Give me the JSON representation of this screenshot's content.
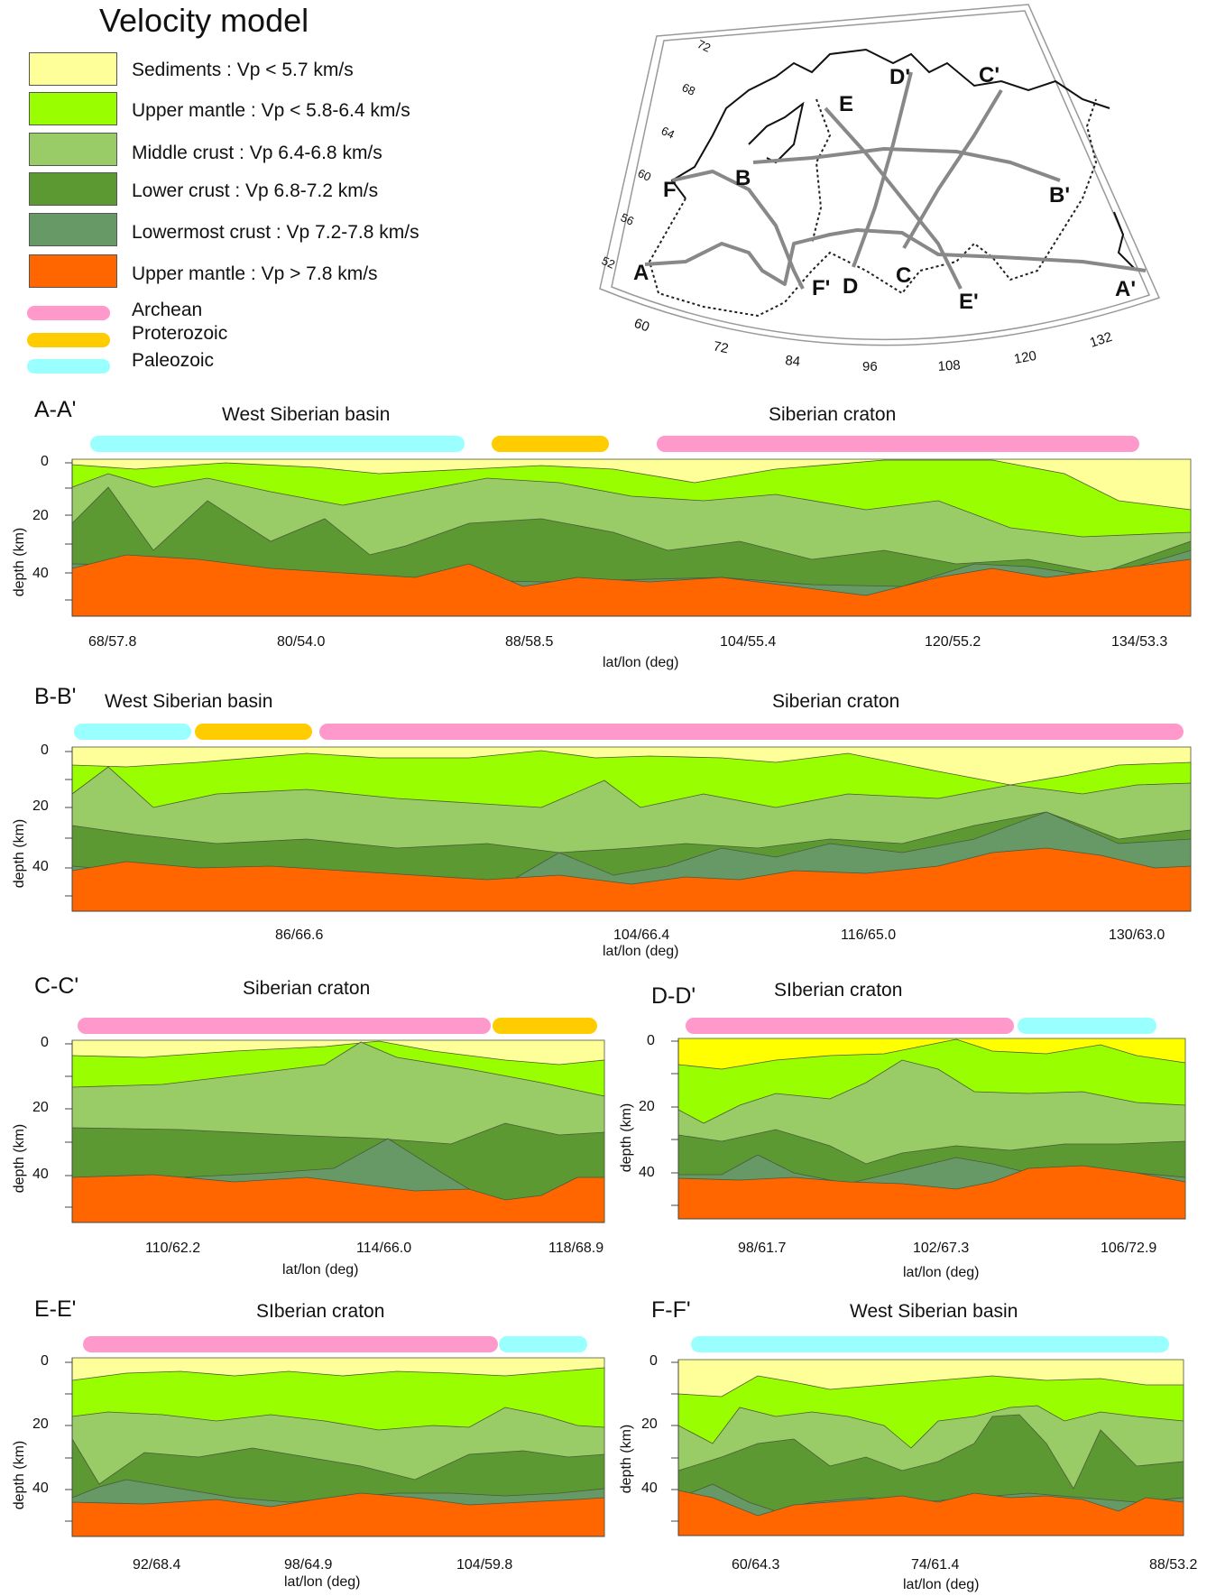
{
  "legend": {
    "title": "Velocity model",
    "layers": [
      {
        "label": "Sediments : Vp < 5.7 km/s",
        "color": "#ffff99"
      },
      {
        "label": "Upper mantle : Vp < 5.8-6.4 km/s",
        "color": "#99ff00"
      },
      {
        "label": "Middle crust : Vp 6.4-6.8 km/s",
        "color": "#99cc66"
      },
      {
        "label": "Lower crust : Vp 6.8-7.2 km/s",
        "color": "#5c9933"
      },
      {
        "label": "Lowermost crust : Vp 7.2-7.8 km/s",
        "color": "#669966"
      },
      {
        "label": "Upper mantle : Vp > 7.8 km/s",
        "color": "#ff6600"
      }
    ],
    "ages": [
      {
        "label": "Archean",
        "color": "#ff99cc"
      },
      {
        "label": "Proterozoic",
        "color": "#ffcc00"
      },
      {
        "label": "Paleozoic",
        "color": "#99ffff"
      }
    ]
  },
  "map": {
    "lat_labels": [
      "72",
      "68",
      "64",
      "60",
      "56",
      "52"
    ],
    "lon_labels": [
      "60",
      "72",
      "84",
      "96",
      "108",
      "120",
      "132"
    ],
    "profile_labels": [
      "A",
      "A'",
      "B",
      "B'",
      "C",
      "C'",
      "D",
      "D'",
      "E",
      "E'",
      "F",
      "F'"
    ]
  },
  "panels": [
    {
      "id": "aa",
      "title": "A-A'",
      "regions": [
        "West Siberian basin",
        "Siberian craton"
      ],
      "ages": [
        "Paleozoic",
        "Proterozoic",
        "Archean"
      ],
      "ticks": [
        "68/57.8",
        "80/54.0",
        "88/58.5",
        "104/55.4",
        "120/55.2",
        "134/53.3"
      ],
      "xlabel": "lat/lon (deg)",
      "ylabel": "depth (km)",
      "depth_ticks": [
        "0",
        "20",
        "40"
      ]
    },
    {
      "id": "bb",
      "title": "B-B'",
      "regions": [
        "West Siberian basin",
        "Siberian craton"
      ],
      "ages": [
        "Paleozoic",
        "Proterozoic",
        "Archean"
      ],
      "ticks": [
        "86/66.6",
        "104/66.4",
        "116/65.0",
        "130/63.0"
      ],
      "xlabel": "lat/lon (deg)",
      "ylabel": "depth (km)",
      "depth_ticks": [
        "0",
        "20",
        "40"
      ]
    },
    {
      "id": "cc",
      "title": "C-C'",
      "regions": [
        "Siberian craton"
      ],
      "ages": [
        "Archean",
        "Proterozoic"
      ],
      "ticks": [
        "110/62.2",
        "114/66.0",
        "118/68.9"
      ],
      "xlabel": "lat/lon (deg)",
      "ylabel": "depth (km)",
      "depth_ticks": [
        "0",
        "20",
        "40"
      ]
    },
    {
      "id": "dd",
      "title": "D-D'",
      "regions": [
        "SIberian craton"
      ],
      "ages": [
        "Archean",
        "Paleozoic"
      ],
      "ticks": [
        "98/61.7",
        "102/67.3",
        "106/72.9"
      ],
      "xlabel": "lat/lon (deg)",
      "ylabel": "depth (km)",
      "depth_ticks": [
        "0",
        "20",
        "40"
      ]
    },
    {
      "id": "ee",
      "title": "E-E'",
      "regions": [
        "SIberian craton"
      ],
      "ages": [
        "Archean",
        "Paleozoic"
      ],
      "ticks": [
        "92/68.4",
        "98/64.9",
        "104/59.8"
      ],
      "xlabel": "lat/lon (deg)",
      "ylabel": "depth (km)",
      "depth_ticks": [
        "0",
        "20",
        "40"
      ]
    },
    {
      "id": "ff",
      "title": "F-F'",
      "regions": [
        "West Siberian basin"
      ],
      "ages": [
        "Paleozoic"
      ],
      "ticks": [
        "60/64.3",
        "74/61.4",
        "88/53.2"
      ],
      "xlabel": "lat/lon (deg)",
      "ylabel": "depth (km)",
      "depth_ticks": [
        "0",
        "20",
        "40"
      ]
    }
  ]
}
